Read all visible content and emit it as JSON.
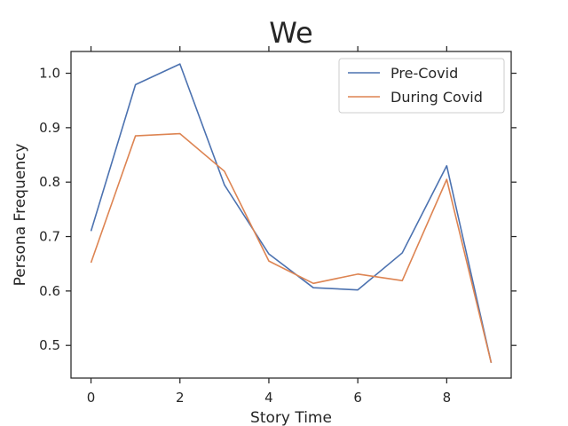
{
  "chart_data": {
    "type": "line",
    "title": "We",
    "xlabel": "Story Time",
    "ylabel": "Persona Frequency",
    "xlim": [
      -0.45,
      9.45
    ],
    "ylim": [
      0.44,
      1.04
    ],
    "xticks": [
      0,
      2,
      4,
      6,
      8
    ],
    "yticks": [
      0.5,
      0.6,
      0.7,
      0.8,
      0.9,
      1.0
    ],
    "xtick_labels": [
      "0",
      "2",
      "4",
      "6",
      "8"
    ],
    "ytick_labels": [
      "0.5",
      "0.6",
      "0.7",
      "0.8",
      "0.9",
      "1.0"
    ],
    "grid": false,
    "legend_position": "top-right",
    "x": [
      0,
      1,
      2,
      3,
      4,
      5,
      6,
      7,
      8,
      9
    ],
    "series": [
      {
        "name": "Pre-Covid",
        "color": "#4c72b0",
        "values": [
          0.71,
          0.979,
          1.017,
          0.795,
          0.668,
          0.606,
          0.602,
          0.67,
          0.83,
          0.468
        ]
      },
      {
        "name": "During Covid",
        "color": "#dd8452",
        "values": [
          0.652,
          0.885,
          0.889,
          0.82,
          0.655,
          0.614,
          0.631,
          0.619,
          0.805,
          0.468
        ]
      }
    ]
  }
}
